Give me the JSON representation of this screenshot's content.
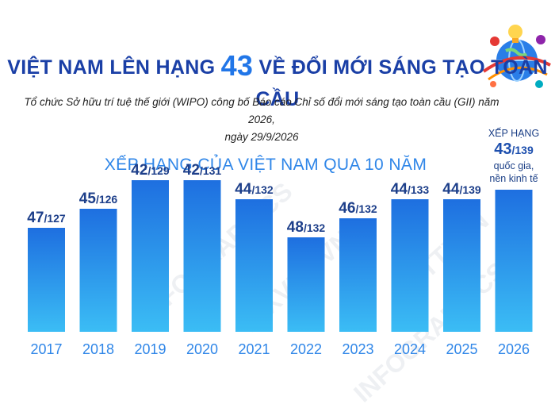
{
  "header": {
    "title_pre": "VIỆT NAM LÊN HẠNG",
    "title_rank": "43",
    "title_post": "VỀ ĐỔI MỚI SÁNG TẠO TOÀN CẦU",
    "subtitle_line1": "Tổ chức Sở hữu trí tuệ thế giới (WIPO) công bố Báo cáo Chỉ số đổi mới sáng tạo toàn cầu (GII) năm 2026,",
    "subtitle_line2": "ngày 29/9/2026"
  },
  "annotation": {
    "line1": "XẾP HẠNG",
    "rank": "43",
    "total": "/139",
    "line3": "quốc gia,",
    "line4": "nền kinh tế"
  },
  "watermarks": [
    "INFOGRAPHICS",
    "TTXVN - VNA",
    "INFOGRAPHICS",
    "TTXVN"
  ],
  "colors": {
    "title": "#1a3fa6",
    "accent": "#2176e8",
    "bar_top": "#1e6fe0",
    "bar_bottom": "#3bbdf5",
    "year_label": "#2f86e8",
    "value_label": "#1d3f8a"
  },
  "chart_data": {
    "type": "bar",
    "title": "XẾP HẠNG CỦA VIỆT NAM QUA 10 NĂM",
    "categories": [
      "2017",
      "2018",
      "2019",
      "2020",
      "2021",
      "2022",
      "2023",
      "2024",
      "2025",
      "2026"
    ],
    "values": [
      47,
      45,
      42,
      42,
      44,
      48,
      46,
      44,
      44,
      43
    ],
    "totals": [
      127,
      126,
      129,
      131,
      132,
      132,
      132,
      133,
      139,
      139
    ],
    "value_labels": [
      "47",
      "45",
      "42",
      "42",
      "44",
      "48",
      "46",
      "44",
      "44",
      null
    ],
    "total_labels": [
      "/127",
      "/126",
      "/129",
      "/131",
      "/132",
      "/132",
      "/132",
      "/133",
      "/139",
      null
    ],
    "y_axis": "inverted rank (lower rank = taller bar)",
    "ylim": [
      55,
      40
    ],
    "grid": false,
    "legend": "none"
  }
}
